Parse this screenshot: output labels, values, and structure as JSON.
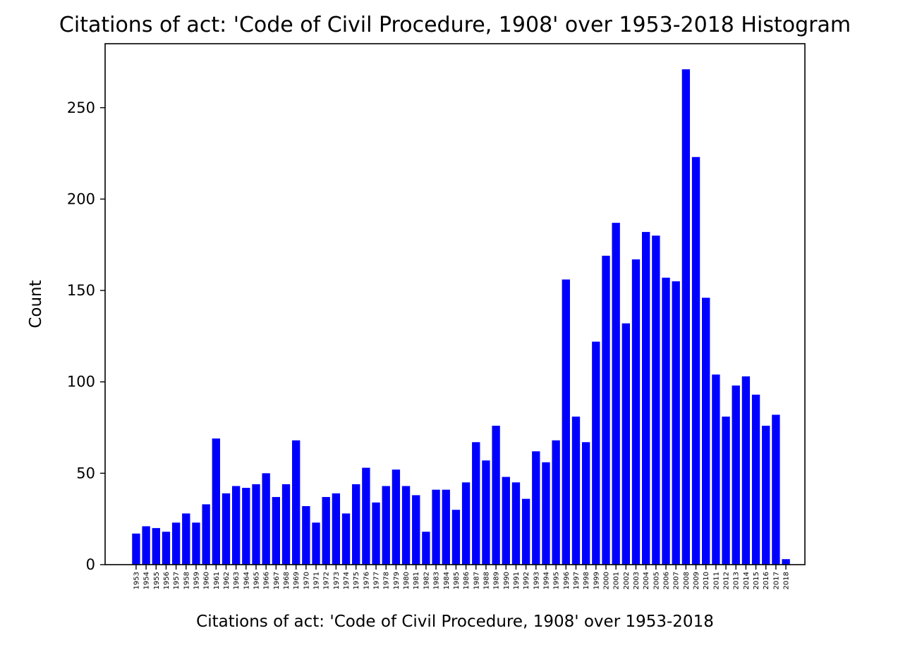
{
  "chart_data": {
    "type": "bar",
    "title": "Citations of act: 'Code of Civil Procedure, 1908' over 1953-2018 Histogram",
    "xlabel": "Citations of act: 'Code of Civil Procedure, 1908' over 1953-2018",
    "ylabel": "Count",
    "categories": [
      "1953",
      "1954",
      "1955",
      "1956",
      "1957",
      "1958",
      "1959",
      "1960",
      "1961",
      "1962",
      "1963",
      "1964",
      "1965",
      "1966",
      "1967",
      "1968",
      "1969",
      "1970",
      "1971",
      "1972",
      "1973",
      "1974",
      "1975",
      "1976",
      "1977",
      "1978",
      "1979",
      "1980",
      "1981",
      "1982",
      "1983",
      "1984",
      "1985",
      "1986",
      "1987",
      "1988",
      "1989",
      "1990",
      "1991",
      "1992",
      "1993",
      "1994",
      "1995",
      "1996",
      "1997",
      "1998",
      "1999",
      "2000",
      "2001",
      "2002",
      "2003",
      "2004",
      "2005",
      "2006",
      "2007",
      "2008",
      "2009",
      "2010",
      "2011",
      "2012",
      "2013",
      "2014",
      "2015",
      "2016",
      "2017",
      "2018"
    ],
    "values": [
      17,
      21,
      20,
      18,
      23,
      28,
      23,
      33,
      69,
      39,
      43,
      42,
      44,
      50,
      37,
      44,
      68,
      32,
      23,
      37,
      39,
      28,
      44,
      53,
      34,
      43,
      52,
      43,
      38,
      18,
      41,
      41,
      30,
      45,
      67,
      57,
      76,
      48,
      45,
      36,
      62,
      56,
      68,
      156,
      81,
      67,
      122,
      169,
      187,
      132,
      167,
      182,
      180,
      157,
      155,
      271,
      223,
      146,
      104,
      81,
      98,
      103,
      93,
      76,
      82,
      3
    ],
    "ylim": [
      0,
      285
    ],
    "yticks": [
      0,
      50,
      100,
      150,
      200,
      250
    ],
    "grid": false,
    "colors": {
      "bar": "#0000ff",
      "axis": "#000000",
      "background": "#ffffff"
    }
  }
}
